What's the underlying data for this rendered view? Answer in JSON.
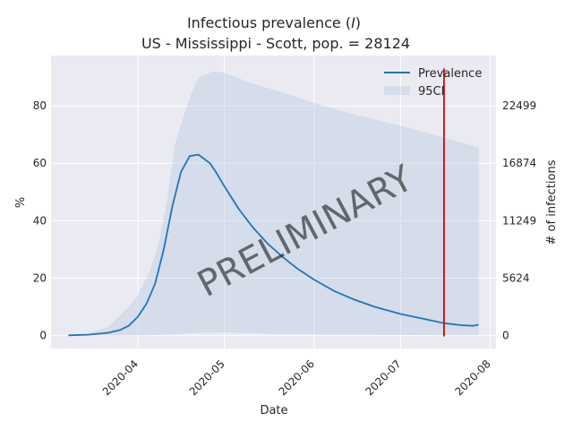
{
  "chart_data": {
    "type": "line",
    "title_prefix": "Infectious prevalence (",
    "title_italic": "I",
    "title_suffix": ")",
    "subtitle": "US - Mississippi - Scott, pop. = 28124",
    "xlabel": "Date",
    "ylabel": "%",
    "ylabel_right": "# of infections",
    "xlim": [
      "2020-03-02",
      "2020-08-03"
    ],
    "ylim": [
      -4.5,
      97.5
    ],
    "x_ticks": [
      "2020-04",
      "2020-05",
      "2020-06",
      "2020-07",
      "2020-08"
    ],
    "y_ticks": [
      0,
      20,
      40,
      60,
      80
    ],
    "y_ticks_right": [
      0,
      5624,
      11249,
      16874,
      22499
    ],
    "grid": true,
    "legend_placement": "top-right",
    "watermark": "PRELIMINARY",
    "vline": {
      "x": "2020-07-16",
      "color": "#e00000"
    },
    "series": [
      {
        "name": "Prevalence",
        "color": "#1f77b4",
        "x": [
          "2020-03-08",
          "2020-03-15",
          "2020-03-22",
          "2020-03-26",
          "2020-03-29",
          "2020-04-01",
          "2020-04-04",
          "2020-04-07",
          "2020-04-10",
          "2020-04-13",
          "2020-04-16",
          "2020-04-19",
          "2020-04-22",
          "2020-04-24",
          "2020-04-26",
          "2020-04-28",
          "2020-05-01",
          "2020-05-06",
          "2020-05-11",
          "2020-05-16",
          "2020-05-21",
          "2020-05-26",
          "2020-06-01",
          "2020-06-08",
          "2020-06-15",
          "2020-06-22",
          "2020-07-01",
          "2020-07-08",
          "2020-07-16",
          "2020-07-22",
          "2020-07-26",
          "2020-07-28"
        ],
        "values": [
          0.1,
          0.3,
          1.0,
          2.0,
          3.5,
          6.5,
          11,
          18,
          30,
          45,
          57,
          62.5,
          63,
          61.5,
          60,
          57,
          52,
          44,
          37.5,
          32,
          27.5,
          23.5,
          19.5,
          15.5,
          12.5,
          10,
          7.5,
          6,
          4.3,
          3.6,
          3.4,
          3.8
        ]
      },
      {
        "name": "95CI",
        "color": "#b0c4de",
        "x": [
          "2020-03-08",
          "2020-03-15",
          "2020-03-22",
          "2020-03-29",
          "2020-04-01",
          "2020-04-05",
          "2020-04-08",
          "2020-04-11",
          "2020-04-14",
          "2020-04-18",
          "2020-04-21",
          "2020-04-23",
          "2020-04-25",
          "2020-04-27",
          "2020-05-01",
          "2020-05-10",
          "2020-05-20",
          "2020-06-01",
          "2020-06-15",
          "2020-07-01",
          "2020-07-16",
          "2020-07-28"
        ],
        "upper": [
          0.2,
          0.8,
          3,
          10,
          14,
          22,
          31,
          46,
          67,
          80,
          88,
          90.5,
          91,
          92,
          91.5,
          88,
          85,
          81,
          77,
          73,
          69,
          65.5
        ],
        "lower": [
          0,
          0,
          0,
          0,
          0,
          0.1,
          0.2,
          0.3,
          0.5,
          0.7,
          0.9,
          1.0,
          1.0,
          1.0,
          1.0,
          0.9,
          0.6,
          0.4,
          0.3,
          0.2,
          0.1,
          0.1
        ]
      }
    ]
  }
}
